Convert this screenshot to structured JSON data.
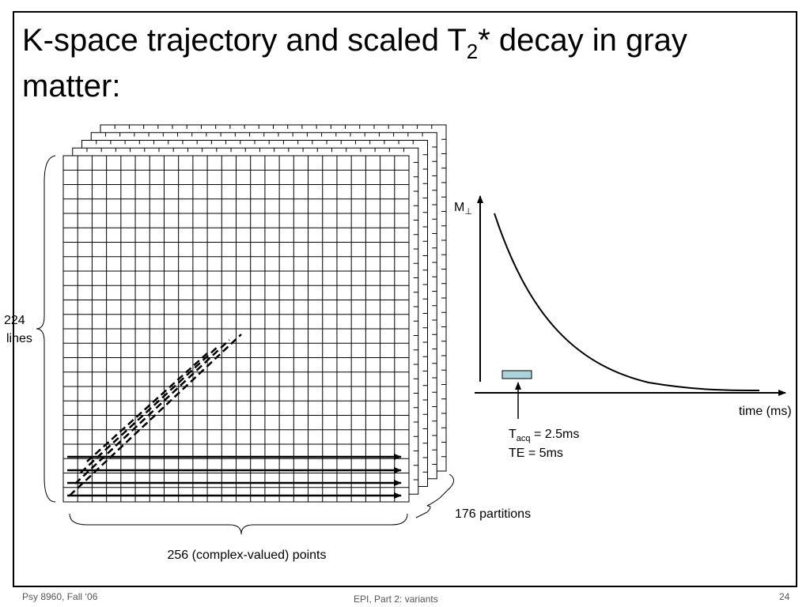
{
  "title": {
    "text_before": "K-space trajectory and scaled T",
    "subscript": "2",
    "text_after_line1": "* decay in gray",
    "line2": "matter:"
  },
  "kspace": {
    "lines_label_1": "224",
    "lines_label_2": "lines",
    "points_label": "256 (complex-valued) points",
    "partitions_label": "176 partitions"
  },
  "decay_plot": {
    "y_label": "M",
    "y_label_sub": "⊥",
    "x_label": "time (ms)",
    "tacq_label": "T",
    "tacq_sub": "acq",
    "tacq_value": " = 2.5ms",
    "te_label": "TE = 5ms"
  },
  "footer": {
    "left": "Psy 8960, Fall ‘06",
    "center": "EPI, Part 2:  variants",
    "right": "24"
  }
}
